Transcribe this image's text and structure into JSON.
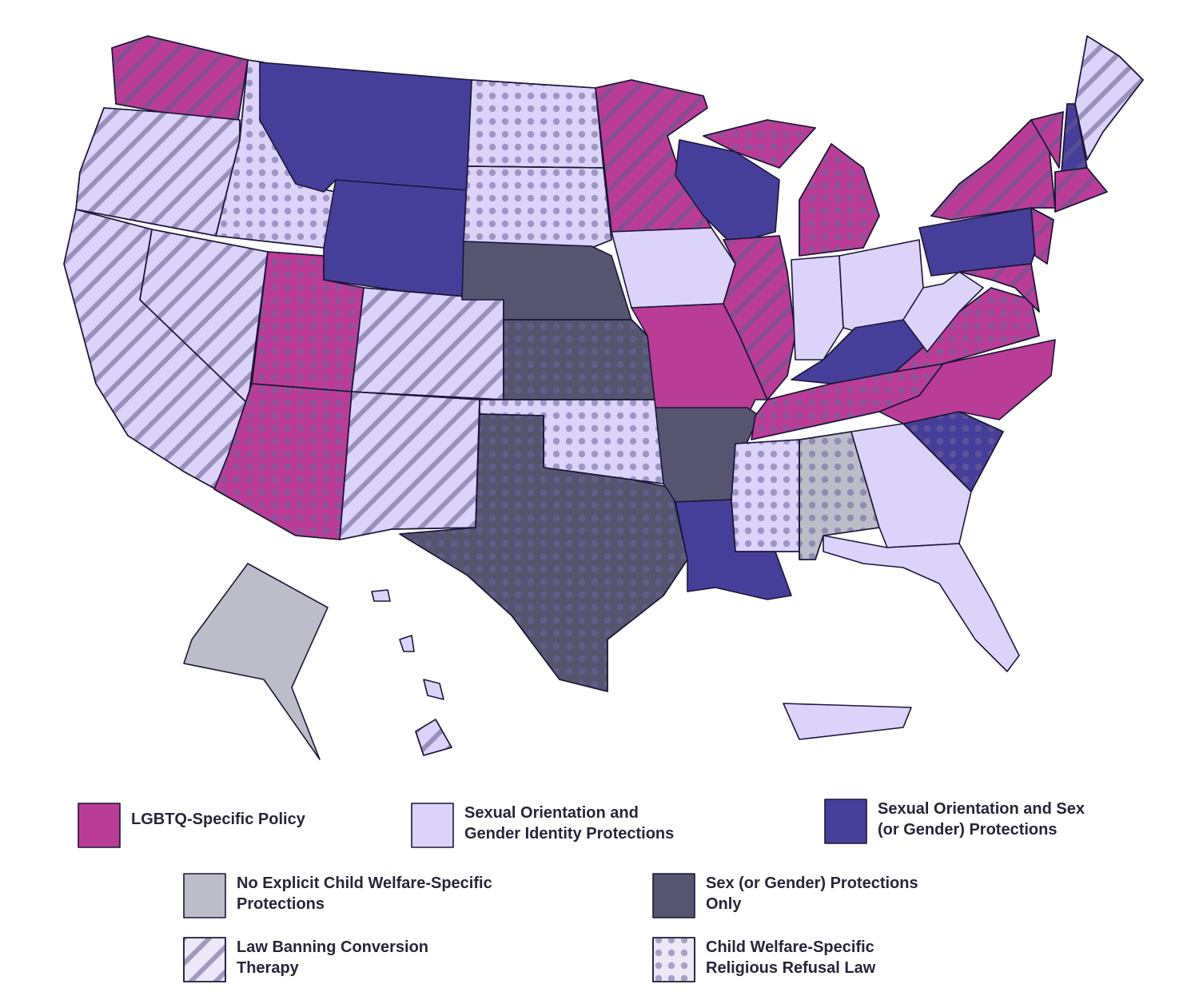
{
  "legend": [
    {
      "lines": [
        "LGBTQ-Specific Policy"
      ],
      "color": "#b93d97"
    },
    {
      "lines": [
        "Sexual Orientation and",
        "Gender Identity Protections"
      ],
      "color": "#dcd3fb"
    },
    {
      "lines": [
        "Sexual Orientation and Sex",
        "(or Gender) Protections"
      ],
      "color": "#463f9a"
    },
    {
      "lines": [
        "No Explicit Child Welfare-Specific",
        "Protections"
      ],
      "color": "#bdbcc9"
    },
    {
      "lines": [
        "Sex (or Gender) Protections",
        "Only"
      ],
      "color": "#55556f"
    },
    {
      "lines": [
        "Law Banning Conversion",
        "Therapy"
      ],
      "pattern": "stripes"
    },
    {
      "lines": [
        "Child Welfare-Specific",
        "Religious Refusal Law"
      ],
      "pattern": "dots"
    }
  ]
}
